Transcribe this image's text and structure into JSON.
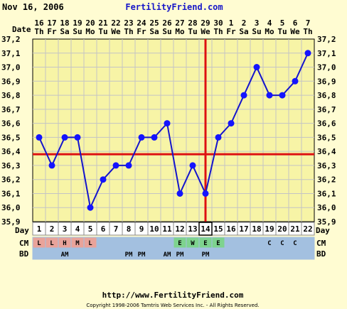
{
  "header": {
    "date": "Nov 16, 2006",
    "brand": "FertilityFriend.com"
  },
  "labels": {
    "date_row": "Date",
    "day_row": "Day",
    "cm_row": "CM",
    "bd_row": "BD"
  },
  "footer": {
    "url": "http://www.FertilityFriend.com",
    "copyright": "Copyright 1998-2006 Tamtris Web Services Inc. - All Rights Reserved."
  },
  "colors": {
    "plot_bg": "#f7f4a6",
    "grid": "#c4c4c4",
    "line": "#1414cc",
    "marker": "#1414ff",
    "coverline": "#dd1111",
    "row_bg": "#a3c0e0",
    "cm_red": "#e9a39a",
    "cm_green": "#7ed38e"
  },
  "chart_data": {
    "type": "line",
    "x": [
      1,
      2,
      3,
      4,
      5,
      6,
      7,
      8,
      9,
      10,
      11,
      12,
      13,
      14,
      15,
      16,
      17,
      18,
      19,
      20,
      21,
      22
    ],
    "dates": [
      "16",
      "17",
      "18",
      "19",
      "20",
      "21",
      "22",
      "23",
      "24",
      "25",
      "26",
      "27",
      "28",
      "29",
      "30",
      "1",
      "2",
      "3",
      "4",
      "5",
      "6",
      "7"
    ],
    "weekdays": [
      "Th",
      "Fr",
      "Sa",
      "Su",
      "Mo",
      "Tu",
      "We",
      "Th",
      "Fr",
      "Sa",
      "Su",
      "Mo",
      "Tu",
      "We",
      "Th",
      "Fr",
      "Sa",
      "Su",
      "Mo",
      "Tu",
      "We",
      "Th"
    ],
    "series": [
      {
        "values": [
          36.5,
          36.3,
          36.5,
          36.5,
          36.0,
          36.2,
          36.3,
          36.3,
          36.5,
          36.5,
          36.6,
          36.1,
          36.3,
          36.1,
          36.5,
          36.6,
          36.8,
          37.0,
          36.8,
          36.8,
          36.9,
          37.1
        ]
      }
    ],
    "y_ticks": [
      "35,9",
      "36,0",
      "36,1",
      "36,2",
      "36,3",
      "36,4",
      "36,5",
      "36,6",
      "36,7",
      "36,8",
      "36,9",
      "37,0",
      "37,1",
      "37,2"
    ],
    "ylim": [
      35.9,
      37.2
    ],
    "coverline": 36.38,
    "ovulation_day": 14,
    "cervical_mucus": [
      "L",
      "L",
      "H",
      "M",
      "L",
      "",
      "",
      "",
      "",
      "",
      "",
      "E",
      "W",
      "E",
      "E",
      "",
      "",
      "",
      "C",
      "C",
      "C",
      ""
    ],
    "intercourse": [
      "",
      "",
      "AM",
      "",
      "",
      "",
      "",
      "PM",
      "PM",
      "",
      "AM",
      "PM",
      "",
      "PM",
      "",
      "",
      "",
      "",
      "",
      "",
      "",
      ""
    ],
    "grid": true
  }
}
